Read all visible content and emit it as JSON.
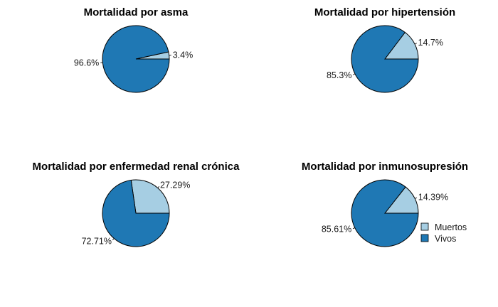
{
  "colors": {
    "muertos": "#a6cee3",
    "vivos": "#1f78b4",
    "stroke": "#000000"
  },
  "legend": {
    "items": [
      {
        "label": "Muertos",
        "color": "#a6cee3"
      },
      {
        "label": "Vivos",
        "color": "#1f78b4"
      }
    ]
  },
  "chart_data": [
    {
      "type": "pie",
      "title": "Mortalidad por asma",
      "slices": [
        {
          "name": "Muertos",
          "value": 3.4,
          "label": "3.4%"
        },
        {
          "name": "Vivos",
          "value": 96.6,
          "label": "96.6%"
        }
      ]
    },
    {
      "type": "pie",
      "title": "Mortalidad por hipertensión",
      "slices": [
        {
          "name": "Muertos",
          "value": 14.7,
          "label": "14.7%"
        },
        {
          "name": "Vivos",
          "value": 85.3,
          "label": "85.3%"
        }
      ]
    },
    {
      "type": "pie",
      "title": "Mortalidad por enfermedad renal crónica",
      "slices": [
        {
          "name": "Muertos",
          "value": 27.29,
          "label": "27.29%"
        },
        {
          "name": "Vivos",
          "value": 72.71,
          "label": "72.71%"
        }
      ]
    },
    {
      "type": "pie",
      "title": "Mortalidad por inmunosupresión",
      "slices": [
        {
          "name": "Muertos",
          "value": 14.39,
          "label": "14.39%"
        },
        {
          "name": "Vivos",
          "value": 85.61,
          "label": "85.61%"
        }
      ]
    }
  ]
}
